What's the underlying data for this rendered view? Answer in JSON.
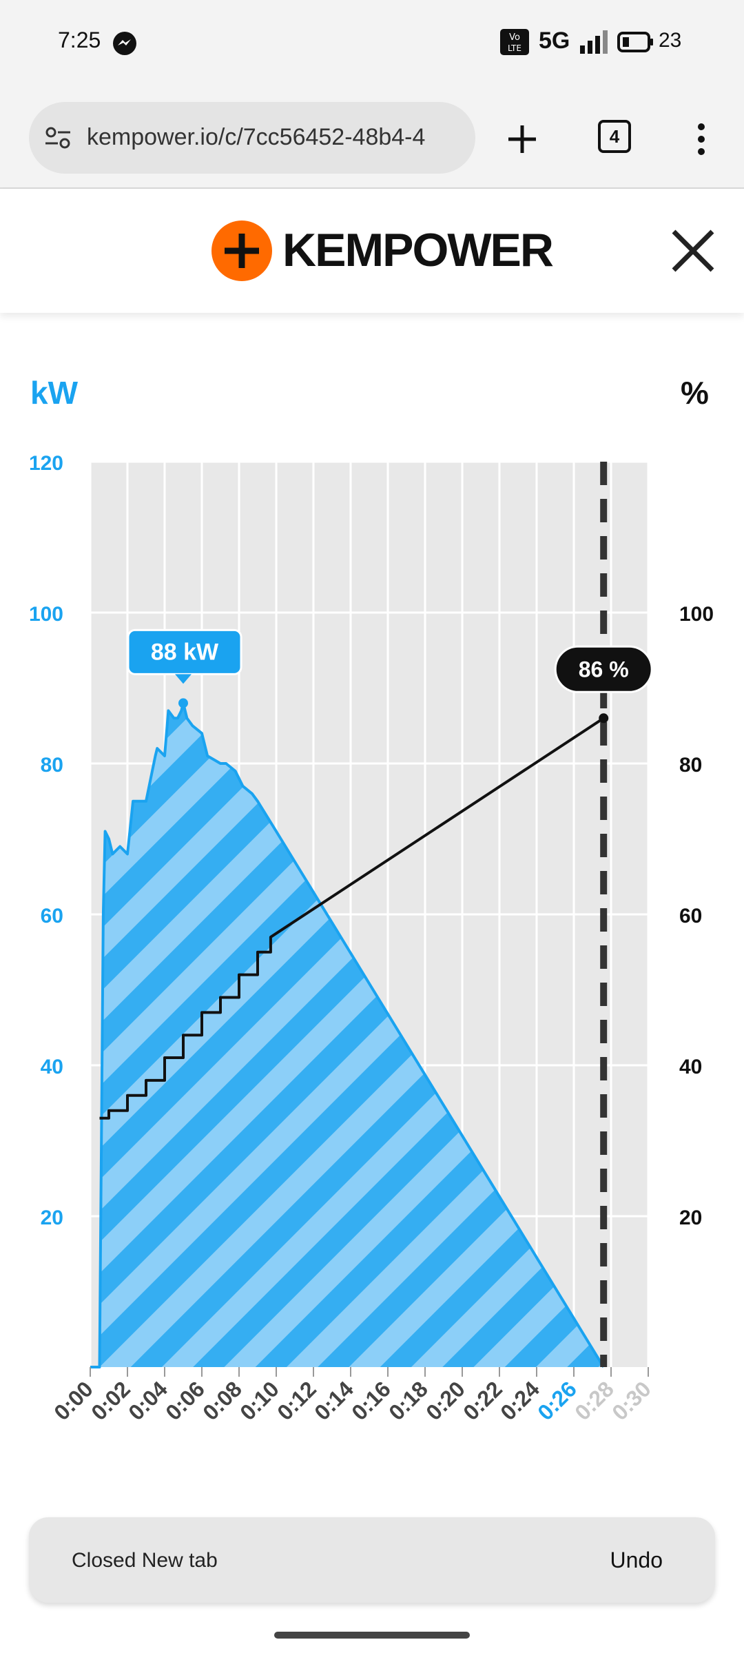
{
  "status_bar": {
    "time": "7:25",
    "network": "5G",
    "battery": "23",
    "icons": [
      "messenger-icon",
      "volte-icon",
      "signal-icon",
      "battery-icon"
    ]
  },
  "browser": {
    "url": "kempower.io/c/7cc56452-48b4-4",
    "tab_count": "4",
    "icons": [
      "site-settings-icon",
      "new-tab-icon",
      "menu-icon"
    ]
  },
  "header": {
    "brand": "KEMPOWER",
    "brand_color": "#ff6600",
    "icons": [
      "plus-logo-icon",
      "close-icon"
    ]
  },
  "chart_data": {
    "type": "area",
    "ylabel_left": "kW",
    "ylabel_right": "%",
    "ylim_left": [
      0,
      120
    ],
    "ylim_right": [
      0,
      120
    ],
    "y_ticks_left": [
      "20",
      "40",
      "60",
      "80",
      "100",
      "120"
    ],
    "y_ticks_right": [
      "20",
      "40",
      "60",
      "80",
      "100"
    ],
    "x_ticks": [
      "0:00",
      "0:02",
      "0:04",
      "0:06",
      "0:08",
      "0:10",
      "0:12",
      "0:14",
      "0:16",
      "0:18",
      "0:20",
      "0:22",
      "0:24",
      "0:26",
      "0:28",
      "0:30"
    ],
    "x_highlight": "0:26",
    "x_dim": [
      "0:28",
      "0:30"
    ],
    "xlim_minutes": [
      0,
      30
    ],
    "grid": true,
    "series": [
      {
        "name": "kW",
        "axis": "left",
        "color": "#1aa3f0",
        "x_minutes": [
          0,
          0.5,
          0.7,
          0.8,
          1.0,
          1.2,
          1.6,
          2.0,
          2.3,
          2.6,
          3.0,
          3.5,
          3.6,
          4.0,
          4.2,
          4.5,
          4.7,
          4.9,
          5.0,
          5.2,
          5.5,
          6.0,
          6.3,
          7.0,
          7.3,
          7.8,
          8.2,
          8.7,
          9.0,
          9.5,
          10.0,
          27.6
        ],
        "values": [
          0,
          0,
          60,
          71,
          70,
          68,
          69,
          68,
          75,
          75,
          75,
          81,
          82,
          81,
          87,
          86,
          86,
          87,
          88,
          86,
          85,
          84,
          81,
          80,
          80,
          79,
          77,
          76,
          75,
          73,
          71,
          0
        ]
      },
      {
        "name": "%",
        "axis": "right",
        "color": "#111111",
        "x_minutes": [
          0.5,
          1.0,
          2.0,
          3.0,
          4.0,
          5.0,
          6.0,
          7.0,
          8.0,
          9.0,
          9.7,
          27.6
        ],
        "values": [
          33,
          34,
          36,
          38,
          41,
          44,
          47,
          49,
          52,
          55,
          57,
          86
        ]
      }
    ],
    "annotations": {
      "peak_label": "88 kW",
      "peak_x_minutes": 5.0,
      "peak_value": 88,
      "soc_label": "86 %",
      "soc_x_minutes": 27.6,
      "soc_value": 86,
      "dashed_marker_x_minutes": 27.6
    }
  },
  "toast": {
    "message": "Closed New tab",
    "action": "Undo"
  }
}
